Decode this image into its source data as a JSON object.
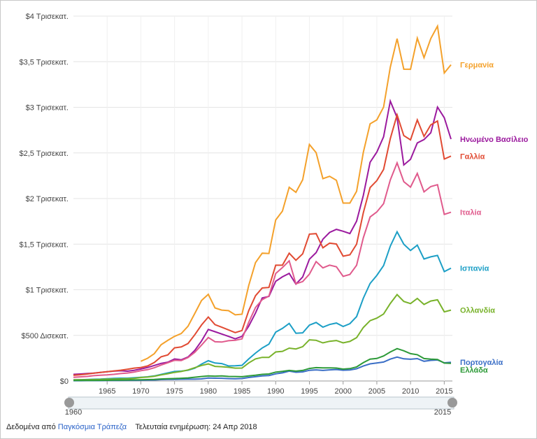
{
  "chart_data": {
    "type": "line",
    "x": [
      1960,
      1961,
      1962,
      1963,
      1964,
      1965,
      1966,
      1967,
      1968,
      1969,
      1970,
      1971,
      1972,
      1973,
      1974,
      1975,
      1976,
      1977,
      1978,
      1979,
      1980,
      1981,
      1982,
      1983,
      1984,
      1985,
      1986,
      1987,
      1988,
      1989,
      1990,
      1991,
      1992,
      1993,
      1994,
      1995,
      1996,
      1997,
      1998,
      1999,
      2000,
      2001,
      2002,
      2003,
      2004,
      2005,
      2006,
      2007,
      2008,
      2009,
      2010,
      2011,
      2012,
      2013,
      2014,
      2015,
      2016
    ],
    "xlim": [
      1960,
      2016
    ],
    "xticks": [
      1965,
      1970,
      1975,
      1980,
      1985,
      1990,
      1995,
      2000,
      2005,
      2010,
      2015
    ],
    "ylim": [
      0,
      4
    ],
    "yticks": [
      {
        "value": 0,
        "label": "$0"
      },
      {
        "value": 0.5,
        "label": "$500 Δισεκατ."
      },
      {
        "value": 1,
        "label": "$1 Τρισεκατ."
      },
      {
        "value": 1.5,
        "label": "$1,5 Τρισεκατ."
      },
      {
        "value": 2,
        "label": "$2 Τρισεκατ."
      },
      {
        "value": 2.5,
        "label": "$2,5 Τρισεκατ."
      },
      {
        "value": 3,
        "label": "$3 Τρισεκατ."
      },
      {
        "value": 3.5,
        "label": "$3,5 Τρισεκατ."
      },
      {
        "value": 4,
        "label": "$4 Τρισεκατ."
      }
    ],
    "grid": true,
    "series": [
      {
        "name": "Γερμανία",
        "color": "#f4a12b",
        "values": [
          null,
          null,
          null,
          null,
          null,
          null,
          null,
          null,
          null,
          null,
          0.216,
          0.249,
          0.3,
          0.398,
          0.445,
          0.489,
          0.52,
          0.6,
          0.74,
          0.882,
          0.95,
          0.801,
          0.777,
          0.771,
          0.725,
          0.732,
          1.046,
          1.297,
          1.401,
          1.398,
          1.765,
          1.862,
          2.123,
          2.068,
          2.206,
          2.592,
          2.503,
          2.218,
          2.244,
          2.2,
          1.95,
          1.95,
          2.079,
          2.506,
          2.819,
          2.862,
          3.002,
          3.44,
          3.752,
          3.418,
          3.417,
          3.758,
          3.544,
          3.753,
          3.89,
          3.376,
          3.467
        ]
      },
      {
        "name": "Ηνωμένο Βασίλειο",
        "color": "#9b1a9e",
        "values": [
          0.073,
          0.077,
          0.081,
          0.086,
          0.094,
          0.101,
          0.108,
          0.112,
          0.107,
          0.117,
          0.131,
          0.148,
          0.17,
          0.193,
          0.206,
          0.241,
          0.232,
          0.263,
          0.336,
          0.438,
          0.565,
          0.54,
          0.515,
          0.489,
          0.462,
          0.489,
          0.601,
          0.745,
          0.91,
          0.927,
          1.093,
          1.142,
          1.179,
          1.062,
          1.14,
          1.335,
          1.407,
          1.554,
          1.628,
          1.662,
          1.641,
          1.616,
          1.752,
          2.034,
          2.398,
          2.509,
          2.677,
          3.068,
          2.887,
          2.368,
          2.43,
          2.609,
          2.646,
          2.72,
          3.002,
          2.886,
          2.651
        ]
      },
      {
        "name": "Γαλλία",
        "color": "#e14a32",
        "values": [
          0.062,
          0.068,
          0.076,
          0.085,
          0.094,
          0.102,
          0.11,
          0.118,
          0.129,
          0.141,
          0.148,
          0.165,
          0.203,
          0.265,
          0.286,
          0.363,
          0.373,
          0.411,
          0.507,
          0.614,
          0.701,
          0.618,
          0.589,
          0.56,
          0.53,
          0.553,
          0.771,
          0.934,
          1.019,
          1.025,
          1.269,
          1.269,
          1.401,
          1.323,
          1.394,
          1.61,
          1.615,
          1.46,
          1.511,
          1.501,
          1.368,
          1.383,
          1.5,
          1.844,
          2.12,
          2.196,
          2.319,
          2.657,
          2.918,
          2.69,
          2.643,
          2.862,
          2.681,
          2.808,
          2.85,
          2.433,
          2.465
        ]
      },
      {
        "name": "Ιταλία",
        "color": "#e05a8c",
        "values": [
          0.04,
          0.045,
          0.05,
          0.058,
          0.063,
          0.067,
          0.073,
          0.081,
          0.087,
          0.097,
          0.113,
          0.124,
          0.145,
          0.175,
          0.2,
          0.227,
          0.224,
          0.257,
          0.314,
          0.393,
          0.477,
          0.43,
          0.427,
          0.441,
          0.446,
          0.461,
          0.644,
          0.805,
          0.891,
          0.931,
          1.178,
          1.243,
          1.317,
          1.065,
          1.09,
          1.171,
          1.309,
          1.24,
          1.27,
          1.252,
          1.147,
          1.168,
          1.268,
          1.569,
          1.798,
          1.853,
          1.943,
          2.204,
          2.391,
          2.185,
          2.125,
          2.276,
          2.073,
          2.131,
          2.152,
          1.826,
          1.85
        ]
      },
      {
        "name": "Ισπανία",
        "color": "#1c9fc6",
        "values": [
          0.012,
          0.014,
          0.016,
          0.019,
          0.021,
          0.025,
          0.029,
          0.031,
          0.031,
          0.035,
          0.04,
          0.046,
          0.055,
          0.072,
          0.088,
          0.104,
          0.108,
          0.117,
          0.14,
          0.185,
          0.222,
          0.197,
          0.191,
          0.165,
          0.166,
          0.172,
          0.241,
          0.306,
          0.362,
          0.404,
          0.536,
          0.576,
          0.631,
          0.523,
          0.528,
          0.612,
          0.641,
          0.59,
          0.619,
          0.635,
          0.598,
          0.628,
          0.706,
          0.907,
          1.069,
          1.157,
          1.265,
          1.478,
          1.635,
          1.499,
          1.431,
          1.489,
          1.337,
          1.361,
          1.376,
          1.199,
          1.237
        ]
      },
      {
        "name": "Ολλανδία",
        "color": "#78b22a",
        "values": [
          0.012,
          0.013,
          0.014,
          0.015,
          0.018,
          0.02,
          0.021,
          0.023,
          0.025,
          0.028,
          0.038,
          0.043,
          0.052,
          0.067,
          0.08,
          0.094,
          0.104,
          0.121,
          0.146,
          0.17,
          0.187,
          0.16,
          0.156,
          0.15,
          0.141,
          0.142,
          0.198,
          0.242,
          0.259,
          0.258,
          0.318,
          0.325,
          0.36,
          0.351,
          0.376,
          0.451,
          0.446,
          0.418,
          0.435,
          0.444,
          0.418,
          0.434,
          0.475,
          0.586,
          0.661,
          0.689,
          0.734,
          0.85,
          0.947,
          0.872,
          0.848,
          0.905,
          0.839,
          0.877,
          0.89,
          0.758,
          0.777
        ]
      },
      {
        "name": "Πορτογαλία",
        "color": "#3a6ec6",
        "values": [
          0.003,
          0.003,
          0.004,
          0.004,
          0.004,
          0.005,
          0.005,
          0.006,
          0.007,
          0.007,
          0.008,
          0.009,
          0.011,
          0.015,
          0.017,
          0.018,
          0.019,
          0.02,
          0.02,
          0.023,
          0.033,
          0.031,
          0.03,
          0.026,
          0.024,
          0.027,
          0.038,
          0.047,
          0.055,
          0.06,
          0.078,
          0.089,
          0.108,
          0.096,
          0.1,
          0.117,
          0.122,
          0.116,
          0.122,
          0.126,
          0.118,
          0.121,
          0.134,
          0.164,
          0.188,
          0.197,
          0.208,
          0.24,
          0.262,
          0.243,
          0.238,
          0.245,
          0.216,
          0.226,
          0.23,
          0.199,
          0.205
        ]
      },
      {
        "name": "Ελλάδα",
        "color": "#2d9a38",
        "values": [
          0.005,
          0.005,
          0.006,
          0.006,
          0.007,
          0.008,
          0.009,
          0.01,
          0.011,
          0.012,
          0.013,
          0.015,
          0.017,
          0.022,
          0.025,
          0.027,
          0.03,
          0.034,
          0.041,
          0.049,
          0.056,
          0.053,
          0.055,
          0.05,
          0.049,
          0.047,
          0.055,
          0.063,
          0.073,
          0.077,
          0.097,
          0.105,
          0.116,
          0.108,
          0.116,
          0.137,
          0.146,
          0.143,
          0.144,
          0.142,
          0.13,
          0.136,
          0.154,
          0.201,
          0.24,
          0.247,
          0.274,
          0.318,
          0.355,
          0.331,
          0.3,
          0.288,
          0.246,
          0.24,
          0.236,
          0.196,
          0.193
        ]
      }
    ]
  },
  "timeline": {
    "start": "1960",
    "end": "2015"
  },
  "footer": {
    "source_prefix": "Δεδομένα από",
    "source_link": "Παγκόσμια Τράπεζα",
    "updated": "Τελευταία ενημέρωση: 24 Απρ 2018"
  }
}
